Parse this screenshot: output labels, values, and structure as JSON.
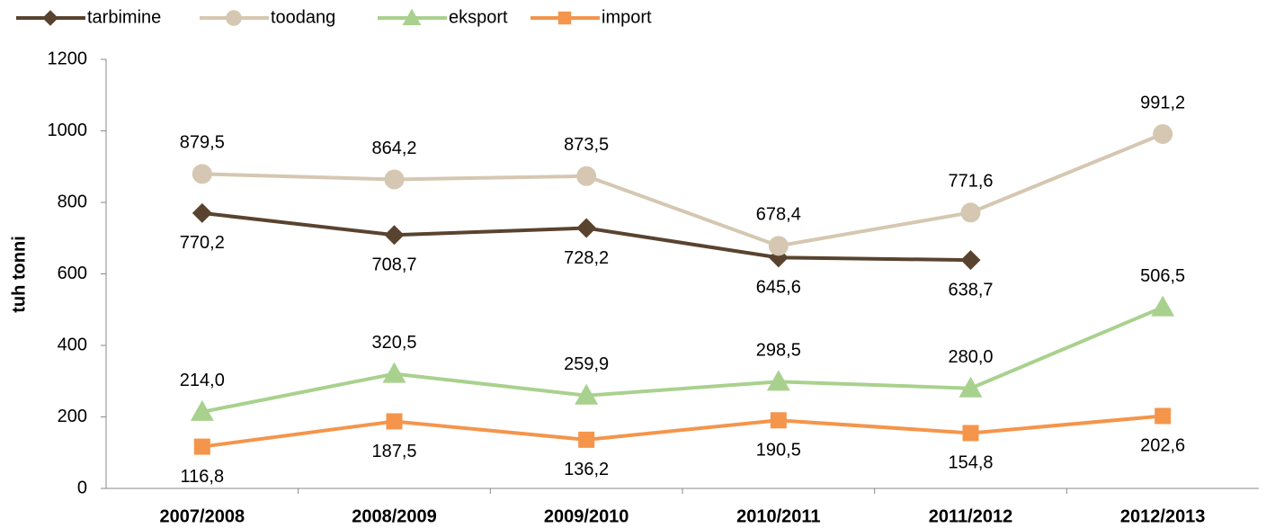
{
  "chart_data": {
    "type": "line",
    "y_label": "tuh tonni",
    "categories": [
      "2007/2008",
      "2008/2009",
      "2009/2010",
      "2010/2011",
      "2011/2012",
      "2012/2013"
    ],
    "series": [
      {
        "name": "tarbimine",
        "color": "#59432f",
        "marker": "diamond",
        "values": [
          770.2,
          708.7,
          728.2,
          645.6,
          638.7,
          null
        ],
        "value_labels": [
          "770,2",
          "708,7",
          "728,2",
          "645,6",
          "638,7",
          null
        ]
      },
      {
        "name": "toodang",
        "color": "#d5c7b1",
        "marker": "circle",
        "values": [
          879.5,
          864.2,
          873.5,
          678.4,
          771.6,
          991.2
        ],
        "value_labels": [
          "879,5",
          "864,2",
          "873,5",
          "678,4",
          "771,6",
          "991,2"
        ]
      },
      {
        "name": "eksport",
        "color": "#a9d18e",
        "marker": "triangle",
        "values": [
          214.0,
          320.5,
          259.9,
          298.5,
          280.0,
          506.5
        ],
        "value_labels": [
          "214,0",
          "320,5",
          "259,9",
          "298,5",
          "280,0",
          "506,5"
        ]
      },
      {
        "name": "import",
        "color": "#f4954b",
        "marker": "square",
        "values": [
          116.8,
          187.5,
          136.2,
          190.5,
          154.8,
          202.6
        ],
        "value_labels": [
          "116,8",
          "187,5",
          "136,2",
          "190,5",
          "154,8",
          "202,6"
        ]
      }
    ],
    "ylim": [
      0,
      1200
    ],
    "yticks": [
      0,
      200,
      400,
      600,
      800,
      1000,
      1200
    ],
    "grid": false,
    "legend": "top-left"
  }
}
